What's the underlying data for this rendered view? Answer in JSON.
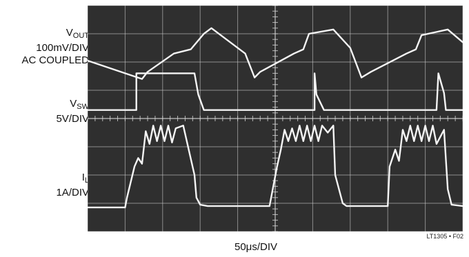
{
  "channels": [
    {
      "name": "V",
      "sub": "OUT",
      "scale": "100mV/DIV",
      "extra": "AC COUPLED"
    },
    {
      "name": "V",
      "sub": "SW",
      "scale": "5V/DIV"
    },
    {
      "name": "I",
      "sub": "L",
      "scale": "1A/DIV"
    }
  ],
  "chart_data": {
    "type": "line",
    "xlabel": "50μs/DIV",
    "figure_id": "LT1305 • F02",
    "grid": {
      "divisions_x": 10,
      "divisions_y": 8
    },
    "colors": {
      "screen": "#2f2f2f",
      "trace": "#f4f4f4",
      "grid": "#d8d8d8"
    },
    "x_units": "div",
    "y_units": "div",
    "series": [
      {
        "name": "VOUT",
        "x": [
          0.0,
          1.45,
          1.6,
          2.3,
          2.75,
          3.1,
          3.3,
          4.2,
          4.45,
          4.6,
          5.5,
          5.75,
          5.9,
          6.55,
          7.0,
          7.3,
          7.55,
          8.5,
          8.75,
          8.9,
          9.6,
          10.0
        ],
        "y": [
          6.05,
          5.4,
          5.65,
          6.3,
          6.45,
          7.0,
          7.2,
          6.3,
          5.45,
          5.65,
          6.3,
          6.45,
          7.0,
          7.15,
          6.5,
          5.45,
          5.65,
          6.3,
          6.45,
          6.95,
          7.15,
          6.7
        ]
      },
      {
        "name": "VSW",
        "x": [
          0.0,
          1.05,
          1.05,
          1.3,
          1.3,
          2.85,
          2.95,
          3.1,
          3.3,
          3.35,
          6.05,
          6.05,
          6.1,
          6.3,
          6.35,
          9.3,
          9.35,
          9.5,
          9.55,
          10.0
        ],
        "y": [
          4.3,
          4.3,
          4.3,
          4.3,
          5.6,
          5.6,
          4.85,
          4.3,
          4.3,
          4.3,
          4.3,
          5.6,
          4.85,
          4.3,
          4.3,
          4.3,
          5.6,
          4.9,
          4.3,
          4.3
        ]
      },
      {
        "name": "IL",
        "x": [
          0.0,
          1.0,
          1.05,
          1.25,
          1.35,
          1.45,
          1.55,
          1.65,
          1.75,
          1.85,
          1.95,
          2.05,
          2.15,
          2.25,
          2.35,
          2.55,
          2.85,
          2.9,
          3.0,
          3.2,
          4.85,
          5.05,
          5.15,
          5.25,
          5.35,
          5.45,
          5.55,
          5.65,
          5.75,
          5.85,
          5.95,
          6.05,
          6.15,
          6.25,
          6.4,
          6.55,
          6.6,
          6.8,
          6.9,
          8.0,
          8.05,
          8.2,
          8.3,
          8.4,
          8.5,
          8.6,
          8.7,
          8.8,
          8.9,
          9.0,
          9.1,
          9.2,
          9.3,
          9.5,
          9.6,
          9.7,
          10.0
        ],
        "y": [
          0.85,
          0.85,
          1.2,
          2.3,
          2.6,
          2.4,
          3.55,
          3.1,
          3.75,
          3.2,
          3.75,
          3.2,
          3.75,
          3.15,
          3.65,
          3.75,
          2.0,
          1.2,
          0.95,
          0.9,
          0.9,
          2.3,
          2.9,
          3.6,
          3.2,
          3.65,
          3.2,
          3.75,
          3.2,
          3.75,
          3.2,
          3.75,
          3.2,
          3.75,
          3.5,
          3.75,
          2.0,
          1.0,
          0.9,
          0.9,
          2.3,
          2.9,
          2.5,
          3.6,
          3.2,
          3.75,
          3.2,
          3.75,
          3.2,
          3.75,
          3.2,
          3.75,
          3.1,
          3.6,
          1.5,
          0.95,
          0.9
        ]
      }
    ]
  }
}
